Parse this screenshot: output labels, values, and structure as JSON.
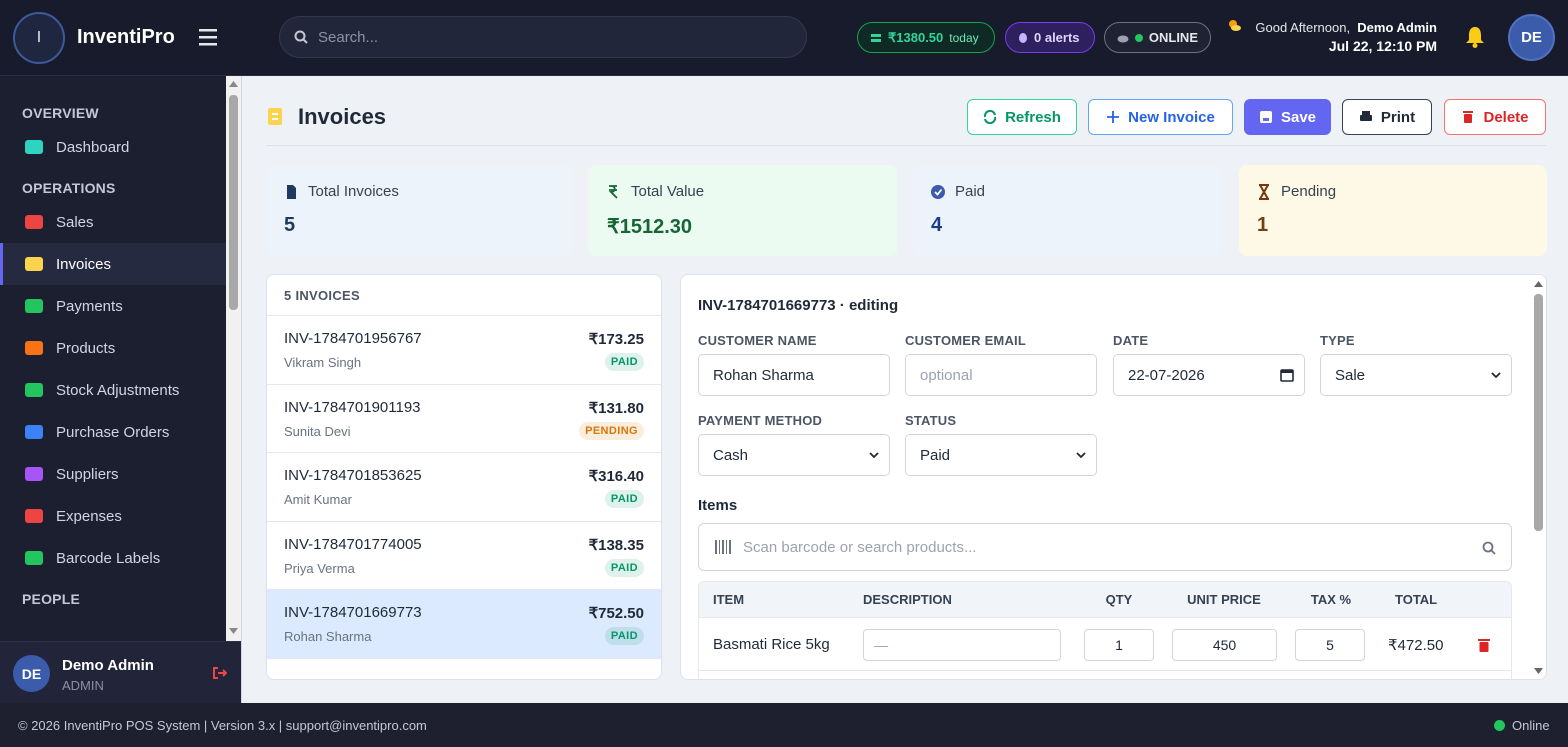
{
  "header": {
    "logo_initial": "I",
    "app_name": "InventiPro",
    "search_placeholder": "Search...",
    "sales_today": "₹1380.50",
    "sales_today_suffix": "today",
    "alerts": "0 alerts",
    "connection": "ONLINE",
    "greeting": "Good Afternoon,",
    "user_name": "Demo Admin",
    "datetime": "Jul 22, 12:10 PM",
    "avatar": "DE"
  },
  "sidebar": {
    "sections": [
      {
        "title": "OVERVIEW",
        "items": [
          "Dashboard"
        ]
      },
      {
        "title": "OPERATIONS",
        "items": [
          "Sales",
          "Invoices",
          "Payments",
          "Products",
          "Stock Adjustments",
          "Purchase Orders",
          "Suppliers",
          "Expenses",
          "Barcode Labels"
        ]
      },
      {
        "title": "PEOPLE",
        "items": []
      }
    ],
    "user": {
      "initials": "DE",
      "name": "Demo Admin",
      "role": "ADMIN"
    }
  },
  "page": {
    "title": "Invoices",
    "buttons": [
      "Refresh",
      "New Invoice",
      "Save",
      "Print",
      "Delete"
    ]
  },
  "stats": [
    {
      "label": "Total Invoices",
      "value": "5"
    },
    {
      "label": "Total Value",
      "value": "₹1512.30"
    },
    {
      "label": "Paid",
      "value": "4"
    },
    {
      "label": "Pending",
      "value": "1"
    }
  ],
  "invoice_list": {
    "heading": "5 INVOICES",
    "items": [
      {
        "id": "INV-1784701956767",
        "amount": "₹173.25",
        "customer": "Vikram Singh",
        "status": "PAID",
        "status_color": "#059669"
      },
      {
        "id": "INV-1784701901193",
        "amount": "₹131.80",
        "customer": "Sunita Devi",
        "status": "PENDING",
        "status_color": "#d97706"
      },
      {
        "id": "INV-1784701853625",
        "amount": "₹316.40",
        "customer": "Amit Kumar",
        "status": "PAID",
        "status_color": "#059669"
      },
      {
        "id": "INV-1784701774005",
        "amount": "₹138.35",
        "customer": "Priya Verma",
        "status": "PAID",
        "status_color": "#059669"
      },
      {
        "id": "INV-1784701669773",
        "amount": "₹752.50",
        "customer": "Rohan Sharma",
        "status": "PAID",
        "status_color": "#059669"
      }
    ]
  },
  "editor": {
    "invoice_id": "INV-1784701669773",
    "mode": "· editing",
    "fields": [
      {
        "label": "CUSTOMER NAME",
        "value": "Rohan Sharma"
      },
      {
        "label": "CUSTOMER EMAIL",
        "placeholder": "optional"
      },
      {
        "label": "DATE",
        "value": "22-07-2026"
      },
      {
        "label": "TYPE",
        "value": "Sale"
      },
      {
        "label": "PAYMENT METHOD",
        "value": "Cash"
      },
      {
        "label": "STATUS",
        "value": "Paid"
      }
    ],
    "items_heading": "Items",
    "item_search_placeholder": "Scan barcode or search products...",
    "columns": [
      "ITEM",
      "DESCRIPTION",
      "QTY",
      "UNIT PRICE",
      "TAX %",
      "TOTAL"
    ],
    "rows": [
      {
        "item": "Basmati Rice 5kg",
        "description_placeholder": "—",
        "qty": "1",
        "unit_price": "450",
        "tax": "5",
        "total": "₹472.50"
      }
    ]
  },
  "footer": {
    "text": "© 2026 InventiPro POS System | Version 3.x | support@inventipro.com",
    "status": "Online"
  }
}
